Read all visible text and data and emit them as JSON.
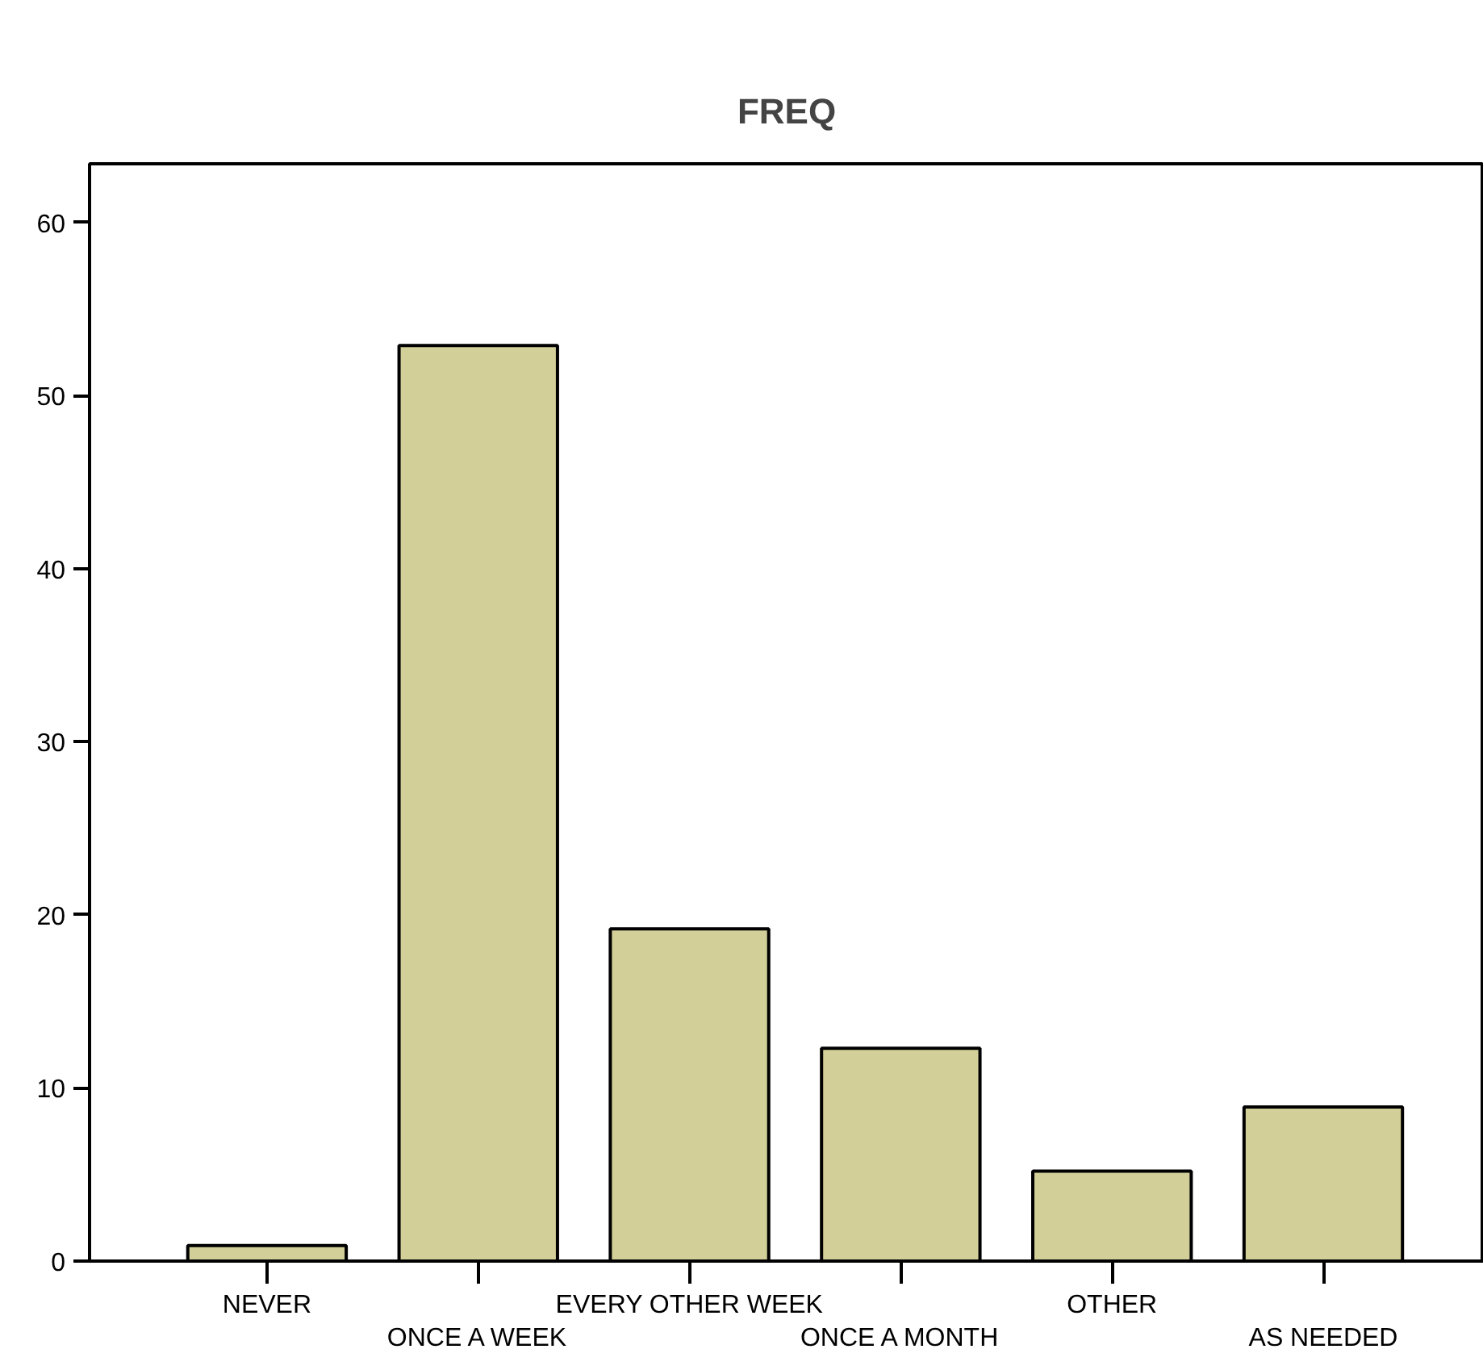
{
  "chart_data": {
    "type": "bar",
    "title": "FREQ",
    "categories": [
      "NEVER",
      "ONCE A WEEK",
      "EVERY OTHER WEEK",
      "ONCE A MONTH",
      "OTHER",
      "AS NEEDED"
    ],
    "values": [
      0.9,
      52.9,
      19.2,
      12.3,
      5.2,
      8.9
    ],
    "color": "#d3cf98",
    "ylim": [
      0,
      63.4
    ],
    "yticks": [
      0,
      10,
      20,
      30,
      40,
      50,
      60
    ],
    "grid": false
  }
}
